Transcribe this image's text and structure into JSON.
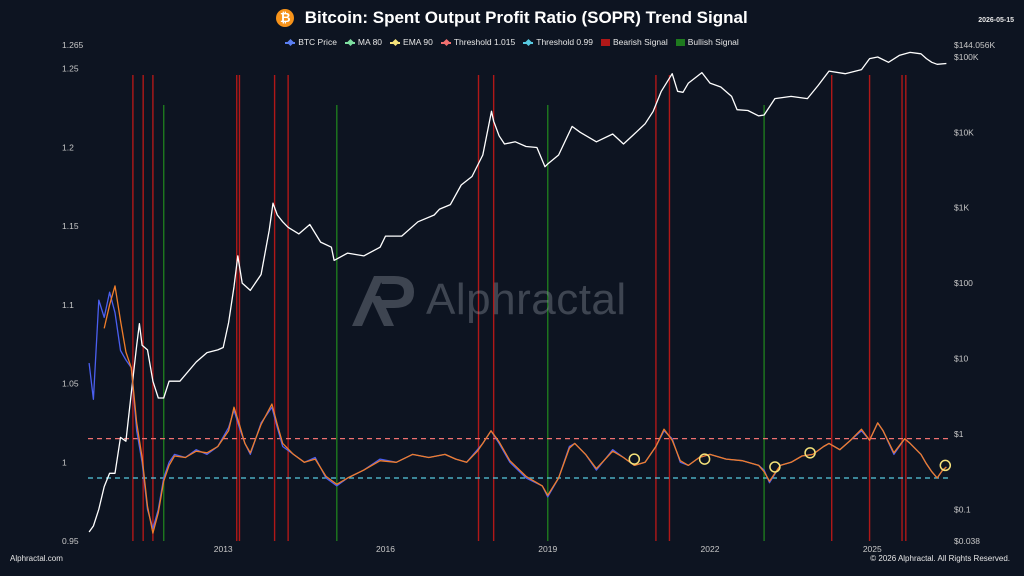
{
  "header": {
    "title": "Bitcoin: Spent Output Profit Ratio (SOPR) Trend Signal",
    "icon": "bitcoin-icon",
    "icon_glyph": "₿",
    "date": "2026-05-15"
  },
  "legend": [
    {
      "label": "BTC Price",
      "color": "#5b7ff2",
      "kind": "line"
    },
    {
      "label": "MA 80",
      "color": "#7ee0a1",
      "kind": "line"
    },
    {
      "label": "EMA 90",
      "color": "#f5e27a",
      "kind": "line"
    },
    {
      "label": "Threshold 1.015",
      "color": "#f07070",
      "kind": "line"
    },
    {
      "label": "Threshold 0.99",
      "color": "#57c9e0",
      "kind": "line"
    },
    {
      "label": "Bearish Signal",
      "color": "#b01818",
      "kind": "box"
    },
    {
      "label": "Bullish Signal",
      "color": "#1e7a1e",
      "kind": "box"
    }
  ],
  "watermark": {
    "text": "Alphractal",
    "icon": "alphractal-logo-icon"
  },
  "footer": {
    "left": "Alphractal.com",
    "right": "© 2026 Alphractal. All Rights Reserved."
  },
  "chart_data": {
    "type": "line",
    "x_range": [
      2010.5,
      2026.4
    ],
    "x_ticks": [
      {
        "value": 2013,
        "label": "2013"
      },
      {
        "value": 2016,
        "label": "2016"
      },
      {
        "value": 2019,
        "label": "2019"
      },
      {
        "value": 2022,
        "label": "2022"
      },
      {
        "value": 2025,
        "label": "2025"
      }
    ],
    "left_axis": {
      "label": "",
      "range": [
        0.95,
        1.265
      ],
      "ticks": [
        {
          "value": 0.95,
          "label": "0.95"
        },
        {
          "value": 1,
          "label": "1"
        },
        {
          "value": 1.05,
          "label": "1.05"
        },
        {
          "value": 1.1,
          "label": "1.1"
        },
        {
          "value": 1.15,
          "label": "1.15"
        },
        {
          "value": 1.2,
          "label": "1.2"
        },
        {
          "value": 1.25,
          "label": "1.25"
        },
        {
          "value": 1.265,
          "label": "1.265"
        }
      ]
    },
    "right_axis": {
      "label": "",
      "scale": "log",
      "range": [
        0.038,
        144056
      ],
      "ticks": [
        {
          "value": 144056,
          "label": "$144.056K"
        },
        {
          "value": 100000,
          "label": "$100K"
        },
        {
          "value": 10000,
          "label": "$10K"
        },
        {
          "value": 1000,
          "label": "$1K"
        },
        {
          "value": 100,
          "label": "$100"
        },
        {
          "value": 10,
          "label": "$10"
        },
        {
          "value": 1,
          "label": "$1"
        },
        {
          "value": 0.1,
          "label": "$0.1"
        },
        {
          "value": 0.038,
          "label": "$0.038"
        }
      ]
    },
    "thresholds": [
      {
        "name": "Threshold 1.015",
        "value": 1.015,
        "color": "#f07070"
      },
      {
        "name": "Threshold 0.99",
        "value": 0.99,
        "color": "#57c9e0"
      }
    ],
    "series": [
      {
        "name": "BTC Price",
        "axis": "right",
        "color": "#ffffff",
        "x": [
          2010.52,
          2010.6,
          2010.7,
          2010.8,
          2010.9,
          2011.0,
          2011.1,
          2011.2,
          2011.3,
          2011.4,
          2011.45,
          2011.5,
          2011.6,
          2011.7,
          2011.8,
          2011.9,
          2012.0,
          2012.2,
          2012.5,
          2012.7,
          2012.9,
          2013.0,
          2013.1,
          2013.2,
          2013.27,
          2013.35,
          2013.5,
          2013.7,
          2013.85,
          2013.92,
          2014.0,
          2014.1,
          2014.2,
          2014.4,
          2014.6,
          2014.8,
          2015.0,
          2015.05,
          2015.3,
          2015.6,
          2015.9,
          2016.0,
          2016.3,
          2016.6,
          2016.9,
          2017.0,
          2017.2,
          2017.4,
          2017.6,
          2017.8,
          2017.96,
          2018.0,
          2018.1,
          2018.2,
          2018.4,
          2018.6,
          2018.8,
          2018.95,
          2019.0,
          2019.2,
          2019.45,
          2019.6,
          2019.9,
          2020.2,
          2020.4,
          2020.6,
          2020.8,
          2020.95,
          2021.1,
          2021.3,
          2021.4,
          2021.5,
          2021.6,
          2021.85,
          2022.0,
          2022.2,
          2022.4,
          2022.5,
          2022.7,
          2022.9,
          2023.0,
          2023.2,
          2023.5,
          2023.8,
          2024.0,
          2024.2,
          2024.5,
          2024.8,
          2024.95,
          2025.1,
          2025.3,
          2025.5,
          2025.7,
          2025.9,
          2026.0,
          2026.1,
          2026.2,
          2026.37
        ],
        "values": [
          0.05,
          0.06,
          0.1,
          0.2,
          0.3,
          0.3,
          0.9,
          0.8,
          3.5,
          15,
          29,
          15,
          13,
          5,
          3,
          3,
          5,
          5,
          9,
          12,
          13,
          14,
          30,
          90,
          230,
          100,
          80,
          130,
          500,
          1150,
          800,
          650,
          550,
          450,
          600,
          350,
          300,
          200,
          250,
          230,
          300,
          420,
          420,
          650,
          800,
          960,
          1100,
          2000,
          2600,
          5000,
          19000,
          14000,
          9000,
          7000,
          7500,
          6500,
          6300,
          3500,
          3800,
          5000,
          12000,
          10000,
          7500,
          9500,
          7000,
          9500,
          13000,
          19000,
          35000,
          60000,
          35000,
          34000,
          45000,
          62000,
          45000,
          40000,
          30000,
          20000,
          19500,
          16500,
          17000,
          28000,
          30000,
          28000,
          42000,
          65000,
          60000,
          68000,
          95000,
          100000,
          85000,
          105000,
          115000,
          110000,
          95000,
          85000,
          80000,
          82000
        ]
      },
      {
        "name": "SOPR",
        "axis": "left",
        "color": "#4b5ff0",
        "x": [
          2010.52,
          2010.6,
          2010.7,
          2010.8,
          2010.9,
          2011.0,
          2011.1,
          2011.2,
          2011.3,
          2011.4,
          2011.5,
          2011.6,
          2011.7,
          2011.8,
          2011.9,
          2012.0,
          2012.1,
          2012.3,
          2012.5,
          2012.7,
          2012.9,
          2013.1,
          2013.2,
          2013.3,
          2013.4,
          2013.5,
          2013.7,
          2013.9,
          2014.0,
          2014.1,
          2014.3,
          2014.5,
          2014.7,
          2014.9,
          2015.1,
          2015.3,
          2015.6,
          2015.9,
          2016.2,
          2016.5,
          2016.8,
          2017.1,
          2017.3,
          2017.5,
          2017.7,
          2017.8,
          2017.95,
          2018.1,
          2018.3,
          2018.6,
          2018.9,
          2019.0,
          2019.2,
          2019.4,
          2019.5,
          2019.7,
          2019.9,
          2020.2,
          2020.4,
          2020.6,
          2020.8,
          2021.0,
          2021.15,
          2021.3,
          2021.45,
          2021.6,
          2021.8,
          2022.0,
          2022.3,
          2022.6,
          2022.9,
          2023.0,
          2023.1,
          2023.3,
          2023.5,
          2023.7,
          2023.9,
          2024.1,
          2024.2,
          2024.4,
          2024.6,
          2024.8,
          2024.95,
          2025.1,
          2025.2,
          2025.4,
          2025.6,
          2025.7,
          2025.9,
          2026.0,
          2026.1,
          2026.2,
          2026.3,
          2026.37
        ],
        "values": [
          1.063,
          1.04,
          1.103,
          1.092,
          1.108,
          1.095,
          1.071,
          1.065,
          1.06,
          1.02,
          1.0,
          0.97,
          0.958,
          0.97,
          0.99,
          1.0,
          1.005,
          1.003,
          1.008,
          1.005,
          1.01,
          1.022,
          1.033,
          1.022,
          1.012,
          1.005,
          1.025,
          1.035,
          1.022,
          1.01,
          1.005,
          1.0,
          1.003,
          0.99,
          0.985,
          0.99,
          0.995,
          1.002,
          1.0,
          1.005,
          1.003,
          1.005,
          1.002,
          1.0,
          1.008,
          1.012,
          1.02,
          1.012,
          1.0,
          0.99,
          0.985,
          0.978,
          0.99,
          1.01,
          1.012,
          1.005,
          0.995,
          1.008,
          1.003,
          0.998,
          1.0,
          1.01,
          1.02,
          1.015,
          1.0,
          0.998,
          1.003,
          1.005,
          1.002,
          1.001,
          0.998,
          0.995,
          0.987,
          0.998,
          1.0,
          1.004,
          1.005,
          1.01,
          1.012,
          1.008,
          1.014,
          1.02,
          1.014,
          1.025,
          1.02,
          1.005,
          1.015,
          1.012,
          1.005,
          0.999,
          0.994,
          0.99,
          0.995,
          0.997
        ]
      },
      {
        "name": "SOPR (smoothed)",
        "axis": "left",
        "color": "#f07d2a",
        "x": [
          2010.8,
          2010.9,
          2011.0,
          2011.1,
          2011.2,
          2011.3,
          2011.4,
          2011.5,
          2011.6,
          2011.7,
          2011.8,
          2011.9,
          2012.0,
          2012.1,
          2012.3,
          2012.5,
          2012.7,
          2012.9,
          2013.1,
          2013.2,
          2013.3,
          2013.4,
          2013.5,
          2013.7,
          2013.9,
          2014.0,
          2014.1,
          2014.3,
          2014.5,
          2014.7,
          2014.9,
          2015.1,
          2015.3,
          2015.6,
          2015.9,
          2016.2,
          2016.5,
          2016.8,
          2017.1,
          2017.3,
          2017.5,
          2017.7,
          2017.8,
          2017.95,
          2018.1,
          2018.3,
          2018.6,
          2018.9,
          2019.0,
          2019.2,
          2019.4,
          2019.5,
          2019.7,
          2019.9,
          2020.2,
          2020.4,
          2020.6,
          2020.8,
          2021.0,
          2021.15,
          2021.3,
          2021.45,
          2021.6,
          2021.8,
          2022.0,
          2022.3,
          2022.6,
          2022.9,
          2023.0,
          2023.1,
          2023.3,
          2023.5,
          2023.7,
          2023.9,
          2024.1,
          2024.2,
          2024.4,
          2024.6,
          2024.8,
          2024.95,
          2025.1,
          2025.2,
          2025.4,
          2025.6,
          2025.7,
          2025.9,
          2026.0,
          2026.1,
          2026.2,
          2026.3,
          2026.37
        ],
        "values": [
          1.085,
          1.1,
          1.112,
          1.09,
          1.07,
          1.06,
          1.025,
          1.003,
          0.972,
          0.955,
          0.968,
          0.988,
          0.998,
          1.004,
          1.003,
          1.007,
          1.006,
          1.01,
          1.02,
          1.035,
          1.024,
          1.012,
          1.006,
          1.024,
          1.037,
          1.024,
          1.012,
          1.005,
          1.0,
          1.002,
          0.991,
          0.986,
          0.99,
          0.995,
          1.001,
          1.0,
          1.005,
          1.003,
          1.005,
          1.002,
          1.0,
          1.007,
          1.012,
          1.02,
          1.013,
          1.001,
          0.991,
          0.985,
          0.979,
          0.99,
          1.009,
          1.012,
          1.005,
          0.996,
          1.007,
          1.003,
          0.998,
          1.0,
          1.01,
          1.021,
          1.014,
          1.001,
          0.998,
          1.003,
          1.005,
          1.002,
          1.001,
          0.998,
          0.994,
          0.988,
          0.998,
          1.0,
          1.004,
          1.005,
          1.01,
          1.012,
          1.008,
          1.014,
          1.021,
          1.014,
          1.025,
          1.02,
          1.006,
          1.015,
          1.012,
          1.005,
          0.999,
          0.994,
          0.99,
          0.995,
          0.997
        ]
      }
    ],
    "bearish_signals": [
      2011.33,
      2011.52,
      2011.7,
      2013.25,
      2013.3,
      2013.95,
      2014.2,
      2017.72,
      2018.0,
      2021.0,
      2021.25,
      2024.25,
      2024.95,
      2025.55,
      2025.62
    ],
    "bullish_signals": [
      2011.9,
      2015.1,
      2019.0,
      2023.0
    ],
    "highlight_circles": [
      {
        "x": 2020.6,
        "y": 1.002
      },
      {
        "x": 2021.9,
        "y": 1.002
      },
      {
        "x": 2023.2,
        "y": 0.997
      },
      {
        "x": 2023.85,
        "y": 1.006
      },
      {
        "x": 2026.35,
        "y": 0.998
      }
    ]
  }
}
